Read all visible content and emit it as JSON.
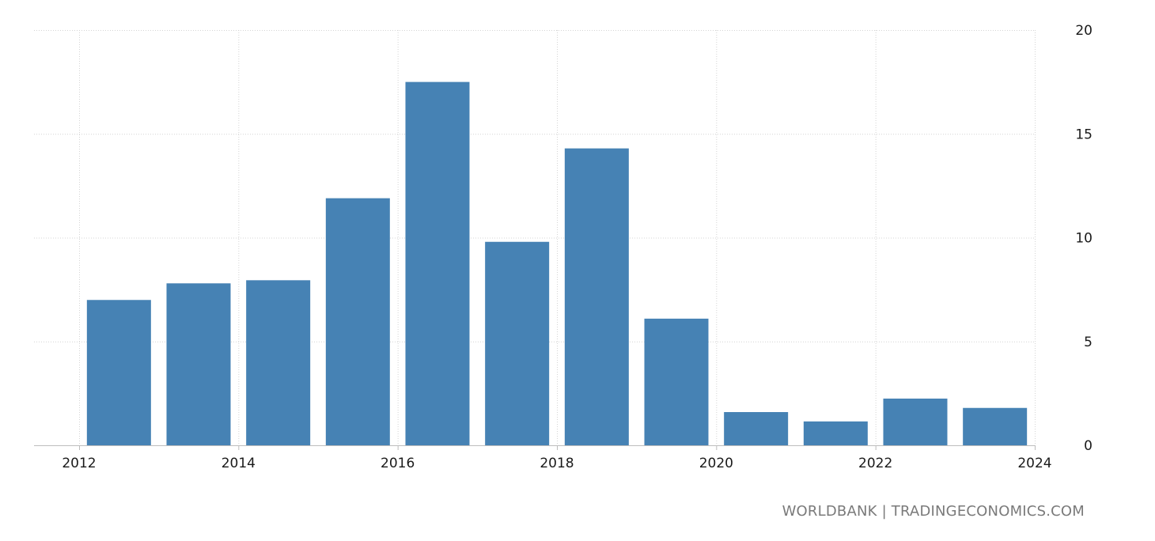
{
  "chart_data": {
    "type": "bar",
    "title": "",
    "xlabel": "",
    "ylabel": "",
    "x": [
      2012.5,
      2013.5,
      2014.5,
      2015.5,
      2016.5,
      2017.5,
      2018.5,
      2019.5,
      2020.5,
      2021.5,
      2022.5,
      2023.5
    ],
    "values": [
      7.0,
      7.8,
      7.95,
      11.9,
      17.5,
      9.8,
      14.3,
      6.1,
      1.6,
      1.15,
      2.25,
      1.8
    ],
    "xlim": [
      2012,
      2024
    ],
    "ylim": [
      0,
      20
    ],
    "x_ticks": [
      "2012",
      "2014",
      "2016",
      "2018",
      "2020",
      "2022",
      "2024"
    ],
    "y_ticks": [
      "0",
      "5",
      "10",
      "15",
      "20"
    ],
    "bar_color": "#4682b4",
    "grid": true,
    "y_axis_side": "right"
  },
  "footer": {
    "source": "WORLDBANK | TRADINGECONOMICS.COM"
  }
}
